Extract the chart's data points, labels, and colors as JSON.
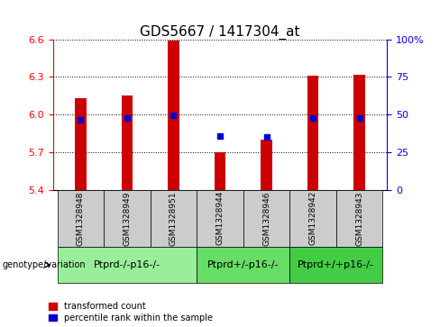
{
  "title": "GDS5667 / 1417304_at",
  "samples": [
    "GSM1328948",
    "GSM1328949",
    "GSM1328951",
    "GSM1328944",
    "GSM1328946",
    "GSM1328942",
    "GSM1328943"
  ],
  "bar_values": [
    6.13,
    6.15,
    6.59,
    5.7,
    5.8,
    6.31,
    6.32
  ],
  "blue_dot_values": [
    5.96,
    5.97,
    5.99,
    5.83,
    5.82,
    5.97,
    5.97
  ],
  "baseline": 5.4,
  "ylim_left": [
    5.4,
    6.6
  ],
  "ylim_right": [
    0,
    100
  ],
  "yticks_left": [
    5.4,
    5.7,
    6.0,
    6.3,
    6.6
  ],
  "yticks_right": [
    0,
    25,
    50,
    75,
    100
  ],
  "ytick_labels_right": [
    "0",
    "25",
    "50",
    "75",
    "100%"
  ],
  "bar_color": "#cc0000",
  "blue_dot_color": "#0000cc",
  "bar_width": 0.25,
  "groups": [
    {
      "label": "Ptprd-/-p16-/-",
      "samples": [
        0,
        1,
        2
      ],
      "color": "#99ee99"
    },
    {
      "label": "Ptprd+/-p16-/-",
      "samples": [
        3,
        4
      ],
      "color": "#66dd66"
    },
    {
      "label": "Ptprd+/+p16-/-",
      "samples": [
        5,
        6
      ],
      "color": "#44cc44"
    }
  ],
  "genotype_label": "genotype/variation",
  "legend_red": "transformed count",
  "legend_blue": "percentile rank within the sample",
  "background_color": "#ffffff",
  "plot_bg_color": "#ffffff",
  "sample_box_color": "#cccccc",
  "title_fontsize": 11,
  "tick_fontsize": 8,
  "label_fontsize": 7,
  "group_fontsize": 8
}
